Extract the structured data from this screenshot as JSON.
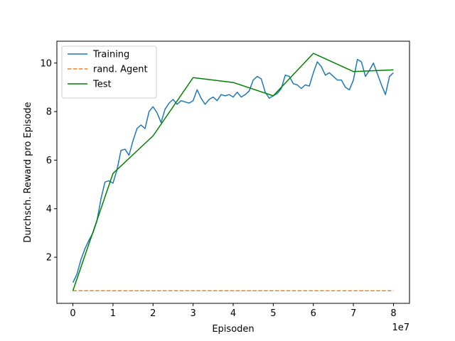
{
  "chart_data": {
    "type": "line",
    "xlabel": "Episoden",
    "ylabel": "Durchsch. Reward pro Episode",
    "x_offset_label": "1e7",
    "xlim": [
      -4000000,
      84000000
    ],
    "ylim": [
      0.1,
      10.9
    ],
    "x_ticks": [
      0,
      10000000,
      20000000,
      30000000,
      40000000,
      50000000,
      60000000,
      70000000,
      80000000
    ],
    "x_tick_labels": [
      "0",
      "1",
      "2",
      "3",
      "4",
      "5",
      "6",
      "7",
      "8"
    ],
    "y_ticks": [
      2,
      4,
      6,
      8,
      10
    ],
    "y_tick_labels": [
      "2",
      "4",
      "6",
      "8",
      "10"
    ],
    "grid": false,
    "legend_position": "top-left",
    "series": [
      {
        "name": "Training",
        "color": "#1f77b4",
        "style": "solid",
        "x": [
          0,
          1000000,
          2000000,
          3000000,
          4000000,
          5000000,
          6000000,
          7000000,
          8000000,
          9000000,
          10000000,
          11000000,
          12000000,
          13000000,
          14000000,
          15000000,
          16000000,
          17000000,
          18000000,
          19000000,
          20000000,
          21000000,
          22000000,
          23000000,
          24000000,
          25000000,
          26000000,
          27000000,
          28000000,
          29000000,
          30000000,
          31000000,
          32000000,
          33000000,
          34000000,
          35000000,
          36000000,
          37000000,
          38000000,
          39000000,
          40000000,
          41000000,
          42000000,
          43000000,
          44000000,
          45000000,
          46000000,
          47000000,
          48000000,
          49000000,
          50000000,
          51000000,
          52000000,
          53000000,
          54000000,
          55000000,
          56000000,
          57000000,
          58000000,
          59000000,
          60000000,
          61000000,
          62000000,
          63000000,
          64000000,
          65000000,
          66000000,
          67000000,
          68000000,
          69000000,
          70000000,
          71000000,
          72000000,
          73000000,
          74000000,
          75000000,
          76000000,
          77000000,
          78000000,
          79000000,
          80000000
        ],
        "y": [
          0.95,
          1.3,
          1.9,
          2.35,
          2.7,
          3.0,
          3.5,
          4.4,
          5.1,
          5.15,
          5.05,
          5.6,
          6.4,
          6.45,
          6.2,
          6.8,
          7.3,
          7.45,
          7.3,
          8.0,
          8.2,
          7.95,
          7.55,
          8.1,
          8.35,
          8.5,
          8.3,
          8.45,
          8.4,
          8.35,
          8.45,
          8.9,
          8.55,
          8.3,
          8.5,
          8.6,
          8.45,
          8.7,
          8.65,
          8.7,
          8.6,
          8.8,
          8.6,
          8.7,
          8.85,
          9.3,
          9.45,
          9.35,
          8.8,
          8.55,
          8.65,
          8.75,
          8.95,
          9.5,
          9.45,
          9.15,
          9.1,
          8.95,
          9.1,
          9.05,
          9.6,
          10.05,
          9.85,
          9.5,
          9.6,
          9.45,
          9.3,
          9.3,
          9.0,
          8.9,
          9.3,
          10.15,
          10.05,
          9.45,
          9.7,
          10.0,
          9.55,
          9.1,
          8.7,
          9.45,
          9.6
        ]
      },
      {
        "name": "rand. Agent",
        "color": "#ff7f0e",
        "style": "dashed",
        "x": [
          0,
          80000000
        ],
        "y": [
          0.62,
          0.62
        ]
      },
      {
        "name": "Test",
        "color": "#008000",
        "style": "solid",
        "x": [
          0,
          10000000,
          20000000,
          30000000,
          40000000,
          50000000,
          60000000,
          70000000,
          80000000
        ],
        "y": [
          0.62,
          5.45,
          7.0,
          9.4,
          9.2,
          8.65,
          10.4,
          9.65,
          9.72
        ]
      }
    ]
  }
}
